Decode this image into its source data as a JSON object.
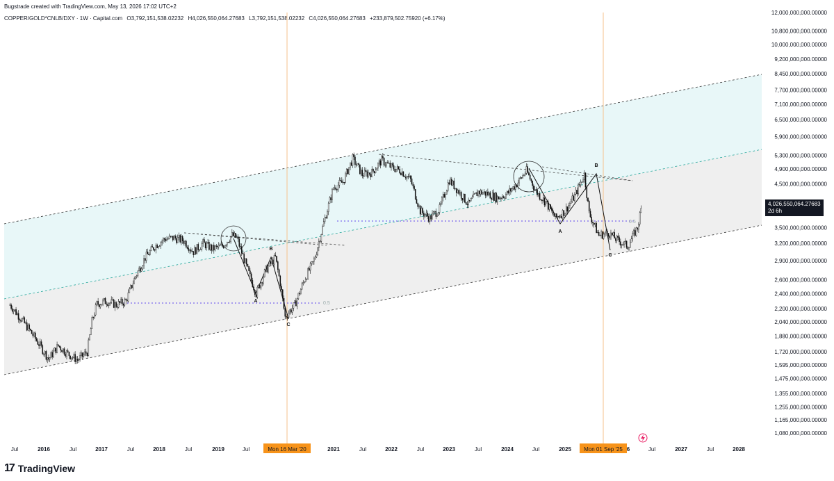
{
  "header": {
    "credit": "Bugstrade created with TradingView.com, May 13, 2026 17:02 UTC+2",
    "symbol": "COPPER/GOLD*CNLB/DXY · 1W · Capital.com",
    "open": "O3,792,151,538.02232",
    "high": "H4,026,550,064.27683",
    "low": "L3,792,151,538.02232",
    "close": "C4,026,550,064.27683",
    "change": "+233,879,502.75920 (+6.17%)"
  },
  "price_tag": {
    "value": "4,026,550,064.27683",
    "countdown": "2d 6h"
  },
  "footer": {
    "logo_mark": "17",
    "logo_text": "TradingView"
  },
  "colors": {
    "upper_fill": "#e8f7f8",
    "lower_fill": "#efefef",
    "vline": "#f6c28b",
    "date_label_bg": "#f7931a",
    "fib_dot": "#7b68ee",
    "midline": "#26a69a"
  },
  "chart_data": {
    "type": "candlestick",
    "y_scale": "log",
    "ylim": [
      1000000000,
      12000000000
    ],
    "y_ticks": [
      "12,000,000,000.00000",
      "10,800,000,000.00000",
      "10,000,000,000.00000",
      "9,200,000,000.00000",
      "8,450,000,000.00000",
      "7,700,000,000.00000",
      "7,100,000,000.00000",
      "6,500,000,000.00000",
      "5,900,000,000.00000",
      "5,300,000,000.00000",
      "4,900,000,000.00000",
      "4,500,000,000.00000",
      "3,500,000,000.00000",
      "3,200,000,000.00000",
      "2,900,000,000.00000",
      "2,600,000,000.00000",
      "2,400,000,000.00000",
      "2,200,000,000.00000",
      "2,040,000,000.00000",
      "1,880,000,000.00000",
      "1,720,000,000.00000",
      "1,595,000,000.00000",
      "1,475,000,000.00000",
      "1,355,000,000.00000",
      "1,255,000,000.00000",
      "1,165,000,000.00000",
      "1,080,000,000.00000"
    ],
    "x_ticks": [
      "Jul",
      "2016",
      "Jul",
      "2017",
      "Jul",
      "2018",
      "Jul",
      "2019",
      "Jul",
      "2021",
      "Jul",
      "2022",
      "Jul",
      "2023",
      "Jul",
      "2024",
      "Jul",
      "2025",
      "6",
      "Jul",
      "2027",
      "Jul",
      "2028"
    ],
    "date_markers": [
      "Mon 16 Mar '20",
      "Mon 01 Sep '25"
    ],
    "wave_labels": [
      "A",
      "B",
      "C",
      "A",
      "B",
      "C"
    ],
    "fib_labels": [
      "0.5",
      "0.5"
    ],
    "price_path": [
      [
        "2015-06",
        2250000000
      ],
      [
        "2015-08",
        2100000000
      ],
      [
        "2015-10",
        1950000000
      ],
      [
        "2015-12",
        1800000000
      ],
      [
        "2016-02",
        1650000000
      ],
      [
        "2016-04",
        1780000000
      ],
      [
        "2016-06",
        1700000000
      ],
      [
        "2016-08",
        1640000000
      ],
      [
        "2016-10",
        1720000000
      ],
      [
        "2016-11",
        2050000000
      ],
      [
        "2016-12",
        2260000000
      ],
      [
        "2017-02",
        2300000000
      ],
      [
        "2017-04",
        2250000000
      ],
      [
        "2017-06",
        2300000000
      ],
      [
        "2017-08",
        2650000000
      ],
      [
        "2017-10",
        2950000000
      ],
      [
        "2017-12",
        3150000000
      ],
      [
        "2018-02",
        3280000000
      ],
      [
        "2018-04",
        3300000000
      ],
      [
        "2018-06",
        3250000000
      ],
      [
        "2018-08",
        3050000000
      ],
      [
        "2018-10",
        3200000000
      ],
      [
        "2018-12",
        3100000000
      ],
      [
        "2019-02",
        3150000000
      ],
      [
        "2019-04",
        3350000000
      ],
      [
        "2019-05",
        3300000000
      ],
      [
        "2019-07",
        2800000000
      ],
      [
        "2019-09",
        2400000000
      ],
      [
        "2019-11",
        2750000000
      ],
      [
        "2020-01",
        2950000000
      ],
      [
        "2020-02",
        2550000000
      ],
      [
        "2020-03",
        2100000000
      ],
      [
        "2020-05",
        2250000000
      ],
      [
        "2020-07",
        2600000000
      ],
      [
        "2020-09",
        2900000000
      ],
      [
        "2020-11",
        3600000000
      ],
      [
        "2021-01",
        4400000000
      ],
      [
        "2021-03",
        4550000000
      ],
      [
        "2021-05",
        5200000000
      ],
      [
        "2021-07",
        4750000000
      ],
      [
        "2021-09",
        4800000000
      ],
      [
        "2021-11",
        5150000000
      ],
      [
        "2022-01",
        4950000000
      ],
      [
        "2022-03",
        4850000000
      ],
      [
        "2022-05",
        4600000000
      ],
      [
        "2022-07",
        3850000000
      ],
      [
        "2022-09",
        3700000000
      ],
      [
        "2022-11",
        3900000000
      ],
      [
        "2023-01",
        4600000000
      ],
      [
        "2023-03",
        4300000000
      ],
      [
        "2023-05",
        4000000000
      ],
      [
        "2023-07",
        4300000000
      ],
      [
        "2023-09",
        4250000000
      ],
      [
        "2023-11",
        4150000000
      ],
      [
        "2024-01",
        4250000000
      ],
      [
        "2024-03",
        4500000000
      ],
      [
        "2024-05",
        4850000000
      ],
      [
        "2024-07",
        4300000000
      ],
      [
        "2024-09",
        4050000000
      ],
      [
        "2024-11",
        3700000000
      ],
      [
        "2025-01",
        3850000000
      ],
      [
        "2025-03",
        4200000000
      ],
      [
        "2025-05",
        4750000000
      ],
      [
        "2025-06",
        3800000000
      ],
      [
        "2025-08",
        3350000000
      ],
      [
        "2025-10",
        3400000000
      ],
      [
        "2025-12",
        3250000000
      ],
      [
        "2026-02",
        3150000000
      ],
      [
        "2026-04",
        3500000000
      ],
      [
        "2026-05",
        4026550064
      ]
    ]
  }
}
